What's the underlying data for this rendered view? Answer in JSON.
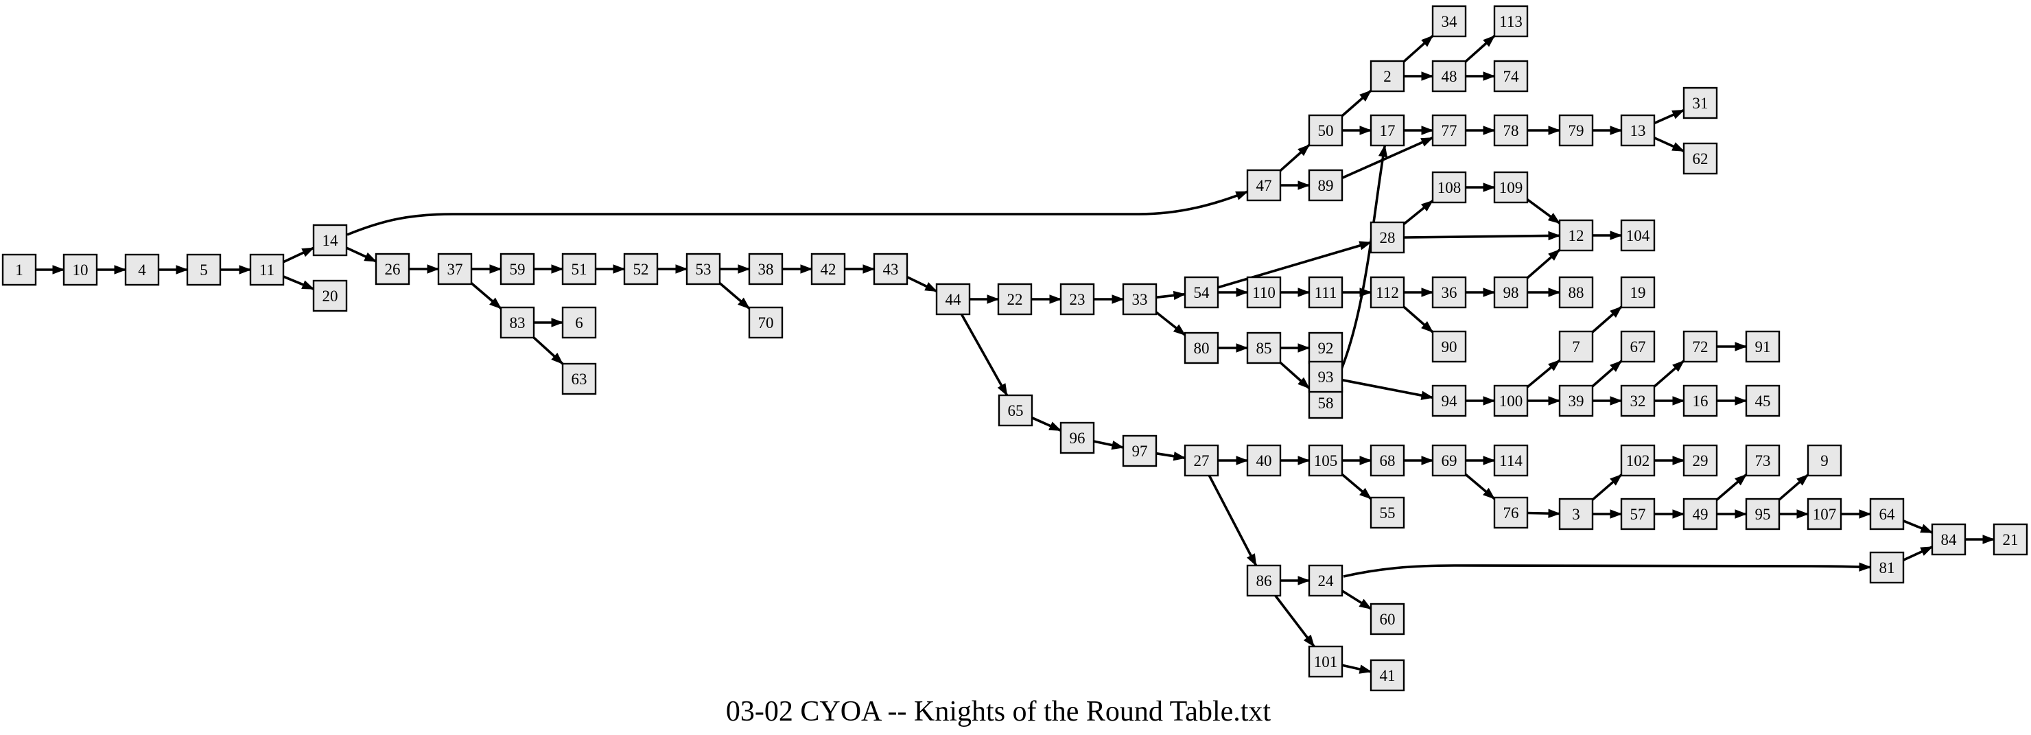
{
  "title": "03-02 CYOA -- Knights of the Round Table.txt",
  "nodes": [
    "1",
    "10",
    "4",
    "5",
    "11",
    "14",
    "20",
    "26",
    "37",
    "59",
    "83",
    "6",
    "63",
    "51",
    "52",
    "53",
    "38",
    "70",
    "42",
    "43",
    "44",
    "22",
    "23",
    "33",
    "54",
    "80",
    "85",
    "92",
    "58",
    "93",
    "94",
    "65",
    "96",
    "97",
    "27",
    "40",
    "105",
    "68",
    "55",
    "69",
    "114",
    "76",
    "86",
    "24",
    "60",
    "101",
    "41",
    "47",
    "50",
    "89",
    "2",
    "34",
    "48",
    "113",
    "74",
    "17",
    "77",
    "78",
    "79",
    "13",
    "31",
    "62",
    "28",
    "108",
    "109",
    "12",
    "104",
    "110",
    "111",
    "112",
    "36",
    "98",
    "88",
    "90",
    "100",
    "7",
    "19",
    "39",
    "67",
    "32",
    "72",
    "91",
    "16",
    "45",
    "3",
    "102",
    "29",
    "57",
    "49",
    "73",
    "95",
    "9",
    "107",
    "64",
    "84",
    "81",
    "21"
  ],
  "edges": [
    [
      "1",
      "10"
    ],
    [
      "10",
      "4"
    ],
    [
      "4",
      "5"
    ],
    [
      "5",
      "11"
    ],
    [
      "11",
      "14"
    ],
    [
      "11",
      "20"
    ],
    [
      "14",
      "47"
    ],
    [
      "14",
      "26"
    ],
    [
      "26",
      "37"
    ],
    [
      "37",
      "59"
    ],
    [
      "37",
      "83"
    ],
    [
      "83",
      "6"
    ],
    [
      "83",
      "63"
    ],
    [
      "59",
      "51"
    ],
    [
      "51",
      "52"
    ],
    [
      "52",
      "53"
    ],
    [
      "53",
      "38"
    ],
    [
      "53",
      "70"
    ],
    [
      "38",
      "42"
    ],
    [
      "42",
      "43"
    ],
    [
      "43",
      "44"
    ],
    [
      "44",
      "22"
    ],
    [
      "44",
      "65"
    ],
    [
      "22",
      "23"
    ],
    [
      "23",
      "33"
    ],
    [
      "33",
      "54"
    ],
    [
      "33",
      "80"
    ],
    [
      "54",
      "110"
    ],
    [
      "54",
      "28"
    ],
    [
      "80",
      "85"
    ],
    [
      "85",
      "92"
    ],
    [
      "85",
      "58"
    ],
    [
      "58",
      "17"
    ],
    [
      "92",
      "93"
    ],
    [
      "93",
      "94"
    ],
    [
      "94",
      "100"
    ],
    [
      "65",
      "96"
    ],
    [
      "96",
      "97"
    ],
    [
      "97",
      "27"
    ],
    [
      "27",
      "40"
    ],
    [
      "27",
      "86"
    ],
    [
      "40",
      "105"
    ],
    [
      "105",
      "68"
    ],
    [
      "105",
      "55"
    ],
    [
      "68",
      "69"
    ],
    [
      "69",
      "114"
    ],
    [
      "69",
      "76"
    ],
    [
      "76",
      "3"
    ],
    [
      "86",
      "24"
    ],
    [
      "86",
      "101"
    ],
    [
      "24",
      "60"
    ],
    [
      "24",
      "81"
    ],
    [
      "101",
      "41"
    ],
    [
      "47",
      "50"
    ],
    [
      "47",
      "89"
    ],
    [
      "50",
      "2"
    ],
    [
      "50",
      "17"
    ],
    [
      "89",
      "77"
    ],
    [
      "2",
      "34"
    ],
    [
      "2",
      "48"
    ],
    [
      "48",
      "113"
    ],
    [
      "48",
      "74"
    ],
    [
      "17",
      "77"
    ],
    [
      "77",
      "78"
    ],
    [
      "78",
      "79"
    ],
    [
      "79",
      "13"
    ],
    [
      "13",
      "31"
    ],
    [
      "13",
      "62"
    ],
    [
      "28",
      "108"
    ],
    [
      "28",
      "12"
    ],
    [
      "108",
      "109"
    ],
    [
      "109",
      "12"
    ],
    [
      "12",
      "104"
    ],
    [
      "110",
      "111"
    ],
    [
      "111",
      "112"
    ],
    [
      "112",
      "36"
    ],
    [
      "112",
      "90"
    ],
    [
      "36",
      "98"
    ],
    [
      "98",
      "12"
    ],
    [
      "98",
      "88"
    ],
    [
      "100",
      "7"
    ],
    [
      "100",
      "39"
    ],
    [
      "7",
      "19"
    ],
    [
      "39",
      "67"
    ],
    [
      "39",
      "32"
    ],
    [
      "32",
      "72"
    ],
    [
      "32",
      "16"
    ],
    [
      "72",
      "91"
    ],
    [
      "16",
      "45"
    ],
    [
      "3",
      "102"
    ],
    [
      "3",
      "57"
    ],
    [
      "102",
      "29"
    ],
    [
      "57",
      "49"
    ],
    [
      "49",
      "73"
    ],
    [
      "49",
      "95"
    ],
    [
      "95",
      "9"
    ],
    [
      "95",
      "107"
    ],
    [
      "107",
      "64"
    ],
    [
      "64",
      "84"
    ],
    [
      "81",
      "84"
    ],
    [
      "84",
      "21"
    ]
  ]
}
